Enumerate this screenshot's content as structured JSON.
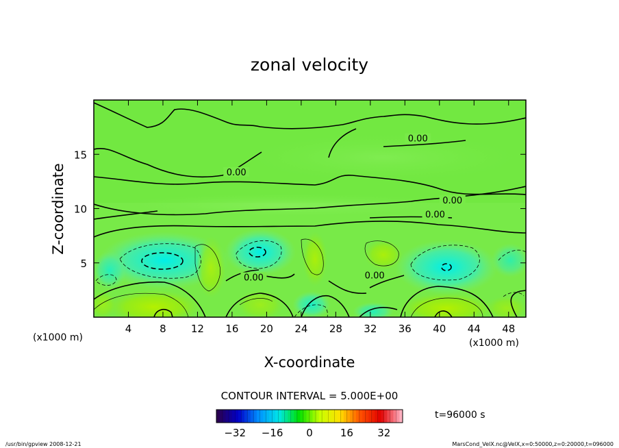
{
  "chart_data": {
    "type": "heatmap",
    "title": "zonal velocity",
    "xlabel": "X-coordinate",
    "ylabel": "Z-coordinate",
    "x_unit_left": "(x1000 m)",
    "x_unit_right": "(x1000 m)",
    "xlim": [
      0,
      50
    ],
    "ylim": [
      0,
      20
    ],
    "x_ticks": [
      4,
      8,
      12,
      16,
      20,
      24,
      28,
      32,
      36,
      40,
      44,
      48
    ],
    "y_ticks": [
      5,
      10,
      15
    ],
    "contour_interval_label": "CONTOUR INTERVAL = 5.000E+00",
    "contour_labels": [
      {
        "text": "0.00",
        "x": 16.5,
        "z": 13.2
      },
      {
        "text": "0.00",
        "x": 37.5,
        "z": 16.3
      },
      {
        "text": "0.00",
        "x": 41.5,
        "z": 10.6
      },
      {
        "text": "0.00",
        "x": 39.5,
        "z": 9.3
      },
      {
        "text": "0.00",
        "x": 18.5,
        "z": 3.5
      },
      {
        "text": "0.00",
        "x": 32.5,
        "z": 3.7
      }
    ],
    "colorbar": {
      "min": -40,
      "max": 40,
      "ticks": [
        -32,
        -16,
        0,
        16,
        32
      ],
      "colors": [
        "#2a0050",
        "#0000c8",
        "#0090ff",
        "#00e6e6",
        "#00e000",
        "#c8ff00",
        "#ffe000",
        "#ff5000",
        "#e00000",
        "#ffb0c0"
      ]
    },
    "time_label": "t=96000 s",
    "field_min_estimate": -14,
    "field_max_estimate": 10
  },
  "footer": {
    "left": "/usr/bin/gpview  2008-12-21",
    "right": "MarsCond_VelX.nc@VelX,x=0:50000,z=0:20000,t=096000"
  }
}
